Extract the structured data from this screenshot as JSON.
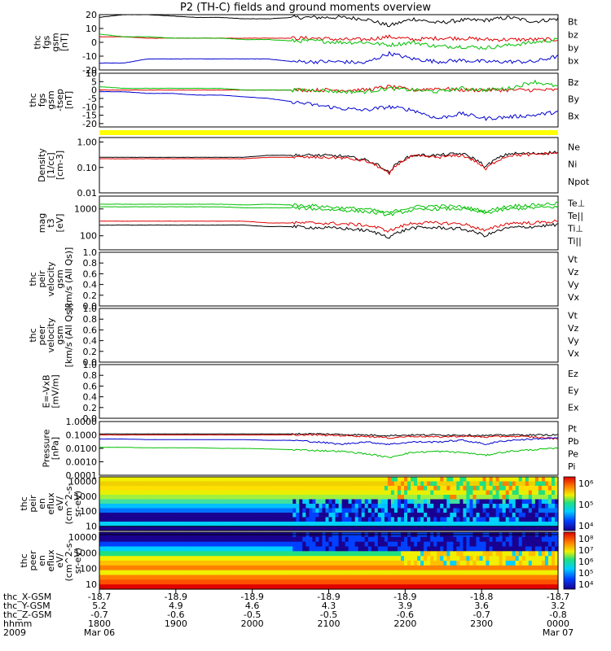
{
  "title": "P2 (TH-C) fields and ground moments overview",
  "panels": [
    {
      "id": "fgs-gsm",
      "ylabel": [
        "thc",
        "fgs",
        "gsm",
        "[nT]"
      ],
      "yticks": [
        "20",
        "10",
        "0",
        "-10",
        "-20"
      ],
      "legend": [
        {
          "t": "Bt",
          "c": "#000000"
        },
        {
          "t": "bz",
          "c": "#e00000"
        },
        {
          "t": "by",
          "c": "#00c000"
        },
        {
          "t": "bx",
          "c": "#0000d0"
        }
      ]
    },
    {
      "id": "fgs-sep",
      "ylabel": [
        "thc",
        "fgs",
        "gsm",
        "-tsep",
        "[nT]"
      ],
      "yticks": [
        "10",
        "5",
        "0",
        "-5",
        "-10",
        "-15",
        "-20"
      ],
      "legend": [
        {
          "t": "Bz",
          "c": "#e00000"
        },
        {
          "t": "By",
          "c": "#00c000"
        },
        {
          "t": "Bx",
          "c": "#0000d0"
        }
      ]
    },
    {
      "id": "density",
      "ylabel": [
        "Density",
        "[1/cc]",
        "[cm-3]"
      ],
      "yticks": [
        "1.00",
        "0.10",
        "0.01"
      ],
      "legend": [
        {
          "t": "Ne",
          "c": "#e00000"
        },
        {
          "t": "Ni",
          "c": "#000000"
        },
        {
          "t": "Npot",
          "c": "#0000d0"
        }
      ]
    },
    {
      "id": "temperature",
      "ylabel": [
        "mag",
        "t3",
        "[eV]"
      ],
      "yticks": [
        "1000",
        "100"
      ],
      "legend": [
        {
          "t": "Te⊥",
          "c": "#e00000"
        },
        {
          "t": "Te||",
          "c": "#000000"
        },
        {
          "t": "Ti⊥",
          "c": "#00c000"
        },
        {
          "t": "Ti||",
          "c": "#00c000"
        }
      ]
    },
    {
      "id": "peir-velocity",
      "ylabel": [
        "thc",
        "peir",
        "velocity",
        "gsm",
        "[km/s (All Qs)]"
      ],
      "yticks": [
        "1.0",
        "0.8",
        "0.6",
        "0.4",
        "0.2",
        "0.0"
      ],
      "legend": [
        {
          "t": "Vt",
          "c": "#000000"
        },
        {
          "t": "Vz",
          "c": "#e00000"
        },
        {
          "t": "Vy",
          "c": "#00c000"
        },
        {
          "t": "Vx",
          "c": "#0000d0"
        }
      ]
    },
    {
      "id": "peer-velocity",
      "ylabel": [
        "thc",
        "peer",
        "velocity",
        "gsm",
        "[km/s (All Qs)]"
      ],
      "yticks": [
        "1.0",
        "0.8",
        "0.6",
        "0.4",
        "0.2",
        "0.0"
      ],
      "legend": [
        {
          "t": "Vt",
          "c": "#000000"
        },
        {
          "t": "Vz",
          "c": "#e00000"
        },
        {
          "t": "Vy",
          "c": "#00c000"
        },
        {
          "t": "Vx",
          "c": "#0000d0"
        }
      ]
    },
    {
      "id": "efield",
      "ylabel": [
        "E=-VxB",
        "[mV/m]"
      ],
      "yticks": [
        "1.0",
        "0.8",
        "0.6",
        "0.4",
        "0.2",
        "0.0"
      ],
      "legend": [
        {
          "t": "Ez",
          "c": "#e00000"
        },
        {
          "t": "Ey",
          "c": "#00c000"
        },
        {
          "t": "Ex",
          "c": "#0000d0"
        }
      ]
    },
    {
      "id": "pressure",
      "ylabel": [
        "Pressure",
        "[nPa]"
      ],
      "yticks": [
        "1.0000",
        "0.1000",
        "0.0100",
        "0.0010",
        "0.0001"
      ],
      "legend": [
        {
          "t": "Pt",
          "c": "#000000"
        },
        {
          "t": "Pb",
          "c": "#e00000"
        },
        {
          "t": "Pe",
          "c": "#00c000"
        },
        {
          "t": "Pi",
          "c": "#0000d0"
        }
      ]
    },
    {
      "id": "peir-eflux",
      "ylabel": [
        "thc",
        "peir",
        "en",
        "eflux",
        "eV/",
        "(cm^2-s-",
        "sr-eV)"
      ],
      "yticks": [
        "10000",
        "1000",
        "100",
        "10"
      ],
      "colorbar": [
        "10⁶",
        "10⁵",
        "10⁴"
      ]
    },
    {
      "id": "peer-eflux",
      "ylabel": [
        "thc",
        "peer",
        "en",
        "eflux",
        "eV/",
        "(cm^2-s-",
        "sr-eV)"
      ],
      "yticks": [
        "10000",
        "1000",
        "100",
        "10"
      ],
      "colorbar": [
        "10⁸",
        "10⁷",
        "10⁶",
        "10⁵",
        "10⁴"
      ]
    }
  ],
  "xaxis": {
    "rows": [
      {
        "label": "thc_X-GSM",
        "values": [
          "-18.7",
          "-18.9",
          "-18.9",
          "-18.9",
          "-18.9",
          "-18.8",
          "-18.7"
        ]
      },
      {
        "label": "thc_Y-GSM",
        "values": [
          "5.2",
          "4.9",
          "4.6",
          "4.3",
          "3.9",
          "3.6",
          "3.2"
        ]
      },
      {
        "label": "thc_Z-GSM",
        "values": [
          "-0.7",
          "-0.6",
          "-0.5",
          "-0.5",
          "-0.6",
          "-0.7",
          "-0.8"
        ]
      },
      {
        "label": "hhmm",
        "values": [
          "1800",
          "1900",
          "2000",
          "2100",
          "2200",
          "2300",
          "0000"
        ]
      },
      {
        "label": "2009",
        "values": [
          "Mar 06",
          "",
          "",
          "",
          "",
          "",
          "Mar 07"
        ]
      }
    ]
  },
  "chart_data": [
    {
      "type": "line",
      "title": "thc fgs gsm",
      "series": [
        {
          "name": "Bt",
          "values": [
            18,
            20,
            20,
            19,
            18,
            18,
            17,
            17,
            18,
            18,
            18,
            17,
            12,
            17,
            14,
            16,
            16,
            18,
            15,
            17
          ]
        },
        {
          "name": "bz",
          "values": [
            4,
            4,
            3,
            3,
            3,
            3,
            3,
            3,
            3,
            3,
            2,
            2,
            4,
            2,
            3,
            3,
            2,
            2,
            2,
            2
          ]
        },
        {
          "name": "by",
          "values": [
            6,
            4,
            4,
            3,
            3,
            3,
            2,
            2,
            1,
            1,
            0,
            0,
            -2,
            0,
            -3,
            -3,
            -4,
            -2,
            0,
            2
          ]
        },
        {
          "name": "bx",
          "values": [
            -15,
            -15,
            -12,
            -12,
            -12,
            -12,
            -12,
            -12,
            -14,
            -14,
            -14,
            -15,
            -8,
            -12,
            -14,
            -13,
            -14,
            -14,
            -14,
            -10
          ]
        }
      ],
      "ylim": [
        -20,
        20
      ]
    },
    {
      "type": "line",
      "title": "thc fgs gsm-tsep",
      "series": [
        {
          "name": "Bz",
          "values": [
            0,
            0,
            0,
            0,
            0,
            0,
            0,
            0,
            0,
            0,
            0,
            0,
            2,
            0,
            1,
            0,
            0,
            0,
            0,
            0
          ]
        },
        {
          "name": "By",
          "values": [
            2,
            1,
            1,
            1,
            1,
            1,
            0,
            0,
            0,
            0,
            -1,
            -1,
            1,
            0,
            -1,
            1,
            0,
            1,
            5,
            2
          ]
        },
        {
          "name": "Bx",
          "values": [
            -1,
            -1,
            -2,
            -2,
            -3,
            -3,
            -4,
            -5,
            -7,
            -9,
            -11,
            -12,
            -10,
            -12,
            -17,
            -14,
            -17,
            -16,
            -15,
            -13
          ]
        }
      ],
      "ylim": [
        -22,
        10
      ]
    },
    {
      "type": "line",
      "title": "Density",
      "series": [
        {
          "name": "Ni",
          "values": [
            0.25,
            0.25,
            0.25,
            0.25,
            0.25,
            0.25,
            0.25,
            0.3,
            0.3,
            0.3,
            0.28,
            0.2,
            0.06,
            0.3,
            0.3,
            0.35,
            0.1,
            0.35,
            0.35,
            0.4
          ]
        },
        {
          "name": "Ne",
          "values": [
            0.22,
            0.22,
            0.22,
            0.22,
            0.22,
            0.22,
            0.22,
            0.25,
            0.25,
            0.25,
            0.24,
            0.18,
            0.05,
            0.28,
            0.25,
            0.3,
            0.08,
            0.3,
            0.32,
            0.38
          ]
        }
      ],
      "ylim": [
        0.01,
        1.5
      ],
      "yscale": "log"
    },
    {
      "type": "line",
      "title": "mag t3",
      "series": [
        {
          "name": "Ti||",
          "values": [
            1200,
            1200,
            1200,
            1200,
            1200,
            1200,
            1100,
            1100,
            1100,
            1000,
            900,
            800,
            600,
            900,
            1000,
            1000,
            700,
            1000,
            1100,
            1200
          ]
        },
        {
          "name": "Ti⊥",
          "values": [
            1500,
            1500,
            1500,
            1500,
            1500,
            1500,
            1400,
            1500,
            1400,
            1300,
            1100,
            1000,
            700,
            1200,
            1300,
            1200,
            800,
            1300,
            1400,
            1600
          ]
        },
        {
          "name": "Te⊥",
          "values": [
            350,
            350,
            350,
            350,
            350,
            350,
            350,
            300,
            300,
            300,
            280,
            250,
            150,
            300,
            300,
            280,
            150,
            300,
            300,
            350
          ]
        },
        {
          "name": "Te||",
          "values": [
            250,
            250,
            250,
            250,
            250,
            250,
            250,
            220,
            220,
            200,
            190,
            160,
            90,
            200,
            200,
            180,
            100,
            200,
            220,
            260
          ]
        }
      ],
      "ylim": [
        30,
        3000
      ],
      "yscale": "log"
    },
    {
      "type": "line",
      "title": "thc peir velocity gsm",
      "series": [],
      "ylim": [
        0,
        1
      ]
    },
    {
      "type": "line",
      "title": "thc peer velocity gsm",
      "series": [],
      "ylim": [
        0,
        1
      ]
    },
    {
      "type": "line",
      "title": "E=-VxB",
      "series": [],
      "ylim": [
        0,
        1
      ]
    },
    {
      "type": "line",
      "title": "Pressure",
      "series": [
        {
          "name": "Pt",
          "values": [
            0.12,
            0.12,
            0.12,
            0.12,
            0.12,
            0.12,
            0.12,
            0.12,
            0.12,
            0.12,
            0.11,
            0.1,
            0.09,
            0.1,
            0.1,
            0.1,
            0.09,
            0.1,
            0.1,
            0.1
          ]
        },
        {
          "name": "Pb",
          "values": [
            0.1,
            0.1,
            0.1,
            0.1,
            0.1,
            0.1,
            0.1,
            0.1,
            0.1,
            0.1,
            0.09,
            0.08,
            0.06,
            0.08,
            0.07,
            0.08,
            0.07,
            0.08,
            0.07,
            0.05
          ]
        },
        {
          "name": "Pi",
          "values": [
            0.05,
            0.05,
            0.045,
            0.045,
            0.045,
            0.045,
            0.045,
            0.04,
            0.04,
            0.03,
            0.02,
            0.03,
            0.02,
            0.03,
            0.03,
            0.04,
            0.02,
            0.04,
            0.05,
            0.06
          ]
        },
        {
          "name": "Pe",
          "values": [
            0.012,
            0.012,
            0.011,
            0.011,
            0.011,
            0.01,
            0.01,
            0.009,
            0.008,
            0.007,
            0.006,
            0.004,
            0.002,
            0.005,
            0.006,
            0.005,
            0.003,
            0.006,
            0.008,
            0.01
          ]
        }
      ],
      "ylim": [
        0.0001,
        1
      ],
      "yscale": "log"
    },
    {
      "type": "heatmap",
      "title": "thc peir en eflux",
      "ylim": [
        5,
        20000
      ],
      "zlabel": "eflux"
    },
    {
      "type": "heatmap",
      "title": "thc peer en eflux",
      "ylim": [
        5,
        20000
      ],
      "zlabel": "eflux"
    }
  ]
}
